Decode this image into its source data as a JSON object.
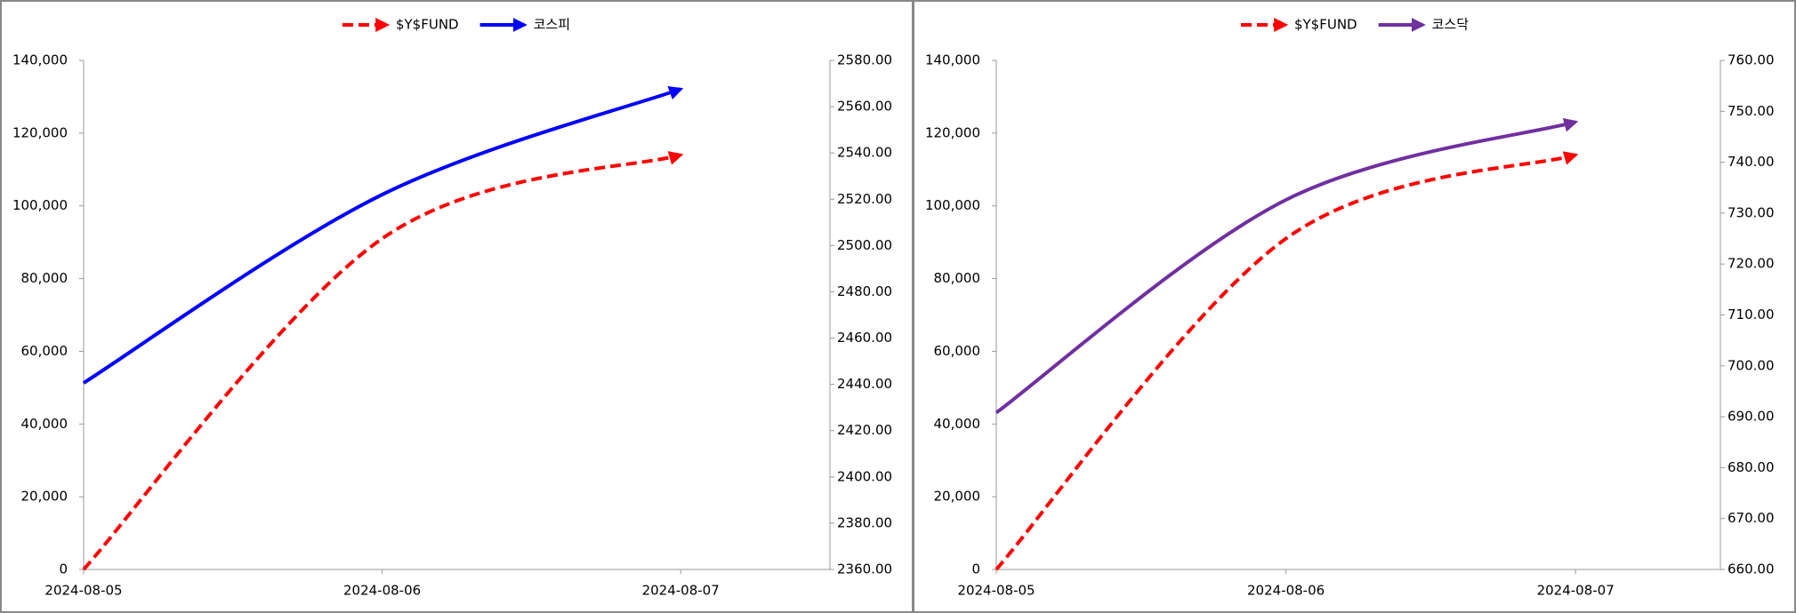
{
  "chart_data": [
    {
      "type": "line",
      "categories": [
        "2024-08-05",
        "2024-08-06",
        "2024-08-07"
      ],
      "series": [
        {
          "name": "$Y$FUND",
          "color": "#ff0000",
          "line_style": "dashed",
          "axis": "y",
          "values": [
            0,
            91000,
            114000
          ]
        },
        {
          "name": "코스피",
          "color": "#0000ff",
          "line_style": "solid",
          "axis": "y2",
          "values": [
            2440.6,
            2522,
            2567.6
          ]
        }
      ],
      "ylim": [
        0,
        140000
      ],
      "yticks": [
        0,
        {
          "value": 20000,
          "label": "20,000"
        },
        {
          "value": 40000,
          "label": "40,000"
        },
        {
          "value": 60000,
          "label": "60,000"
        },
        {
          "value": 80000,
          "label": "80,000"
        },
        {
          "value": 100000,
          "label": "100,000"
        },
        {
          "value": 120000,
          "label": "120,000"
        },
        {
          "value": 140000,
          "label": "140,000"
        }
      ],
      "y2lim": [
        2360,
        2580
      ],
      "y2ticks": [
        {
          "value": 2360,
          "label": "2360.00"
        },
        {
          "value": 2380,
          "label": "2380.00"
        },
        {
          "value": 2400,
          "label": "2400.00"
        },
        {
          "value": 2420,
          "label": "2420.00"
        },
        {
          "value": 2440,
          "label": "2440.00"
        },
        {
          "value": 2460,
          "label": "2460.00"
        },
        {
          "value": 2480,
          "label": "2480.00"
        },
        {
          "value": 2500,
          "label": "2500.00"
        },
        {
          "value": 2520,
          "label": "2520.00"
        },
        {
          "value": 2540,
          "label": "2540.00"
        },
        {
          "value": 2560,
          "label": "2560.00"
        },
        {
          "value": 2580,
          "label": "2580.00"
        }
      ],
      "legend": "top"
    },
    {
      "type": "line",
      "categories": [
        "2024-08-05",
        "2024-08-06",
        "2024-08-07"
      ],
      "series": [
        {
          "name": "$Y$FUND",
          "color": "#ff0000",
          "line_style": "dashed",
          "axis": "y",
          "values": [
            0,
            91000,
            114000
          ]
        },
        {
          "name": "코스닥",
          "color": "#7030a0",
          "line_style": "solid",
          "axis": "y2",
          "values": [
            690.8,
            732.6,
            747.9
          ]
        }
      ],
      "ylim": [
        0,
        140000
      ],
      "yticks": [
        0,
        {
          "value": 20000,
          "label": "20,000"
        },
        {
          "value": 40000,
          "label": "40,000"
        },
        {
          "value": 60000,
          "label": "60,000"
        },
        {
          "value": 80000,
          "label": "80,000"
        },
        {
          "value": 100000,
          "label": "100,000"
        },
        {
          "value": 120000,
          "label": "120,000"
        },
        {
          "value": 140000,
          "label": "140,000"
        }
      ],
      "y2lim": [
        660,
        760
      ],
      "y2ticks": [
        {
          "value": 660,
          "label": "660.00"
        },
        {
          "value": 670,
          "label": "670.00"
        },
        {
          "value": 680,
          "label": "680.00"
        },
        {
          "value": 690,
          "label": "690.00"
        },
        {
          "value": 700,
          "label": "700.00"
        },
        {
          "value": 710,
          "label": "710.00"
        },
        {
          "value": 720,
          "label": "720.00"
        },
        {
          "value": 730,
          "label": "730.00"
        },
        {
          "value": 740,
          "label": "740.00"
        },
        {
          "value": 750,
          "label": "750.00"
        },
        {
          "value": 760,
          "label": "760.00"
        }
      ],
      "legend": "top"
    }
  ]
}
